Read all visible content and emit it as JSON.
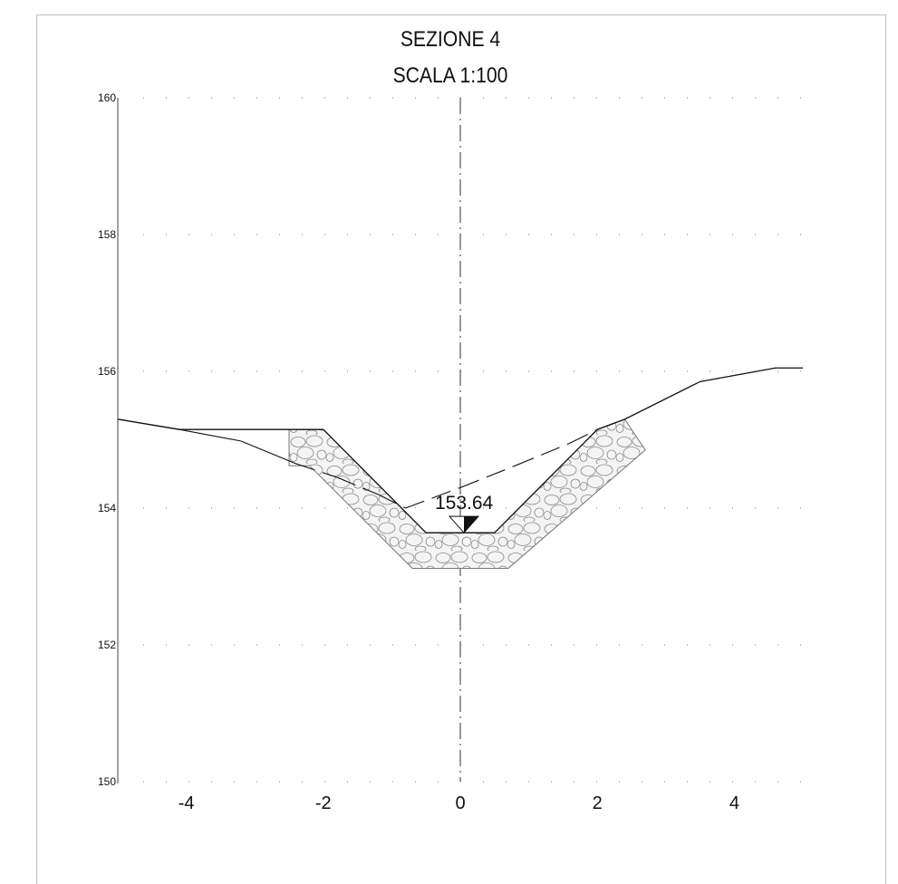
{
  "title": "SEZIONE 4",
  "subtitle": "SCALA 1:100",
  "chart_data": {
    "type": "line",
    "title": "SEZIONE 4",
    "subtitle": "SCALA 1:100",
    "xlim": [
      -5,
      5
    ],
    "ylim": [
      150,
      160
    ],
    "x_ticks": [
      -4,
      -2,
      0,
      2,
      4
    ],
    "x_tick_labels": [
      "-4",
      "-2",
      "0",
      "2",
      "4"
    ],
    "y_ticks": [
      150,
      152,
      154,
      156,
      158,
      160
    ],
    "y_tick_labels": [
      "150",
      "152",
      "154",
      "156",
      "158",
      "160"
    ],
    "grid": "dotted horizontal",
    "series": [
      {
        "role": "project-section",
        "style": "solid",
        "x": [
          -5,
          -4.1,
          -2.0,
          -2.0,
          -0.5,
          0.5,
          2.0,
          2.4,
          3.5,
          4.6,
          5.0
        ],
        "y": [
          155.3,
          155.15,
          155.15,
          155.15,
          153.64,
          153.64,
          155.15,
          155.3,
          155.85,
          156.05,
          156.05
        ]
      },
      {
        "role": "existing-ground",
        "style": "solid-then-dashed",
        "x": [
          -5,
          -4.1,
          -3.2,
          -2.4,
          -1.8,
          -1.2,
          -0.8,
          0.0,
          0.8,
          1.6,
          2.0,
          2.4
        ],
        "y": [
          155.3,
          155.15,
          154.98,
          154.65,
          154.45,
          154.2,
          154.0,
          154.3,
          154.62,
          154.95,
          155.15,
          155.3
        ]
      },
      {
        "role": "stone-lining",
        "style": "hatched",
        "x": [
          -2.5,
          -2.0,
          -0.5,
          0.5,
          2.0,
          2.4,
          2.7,
          0.7,
          -0.7,
          -2.2,
          -2.5
        ],
        "y": [
          155.15,
          155.15,
          153.64,
          153.64,
          155.15,
          155.3,
          154.85,
          153.12,
          153.12,
          154.62,
          154.62
        ]
      }
    ],
    "annotations": [
      {
        "text": "153.64",
        "x": 0.0,
        "y": 153.64,
        "marker": "water-level-triangle"
      }
    ],
    "axis_line": {
      "x": 0,
      "style": "dash-dot"
    }
  }
}
